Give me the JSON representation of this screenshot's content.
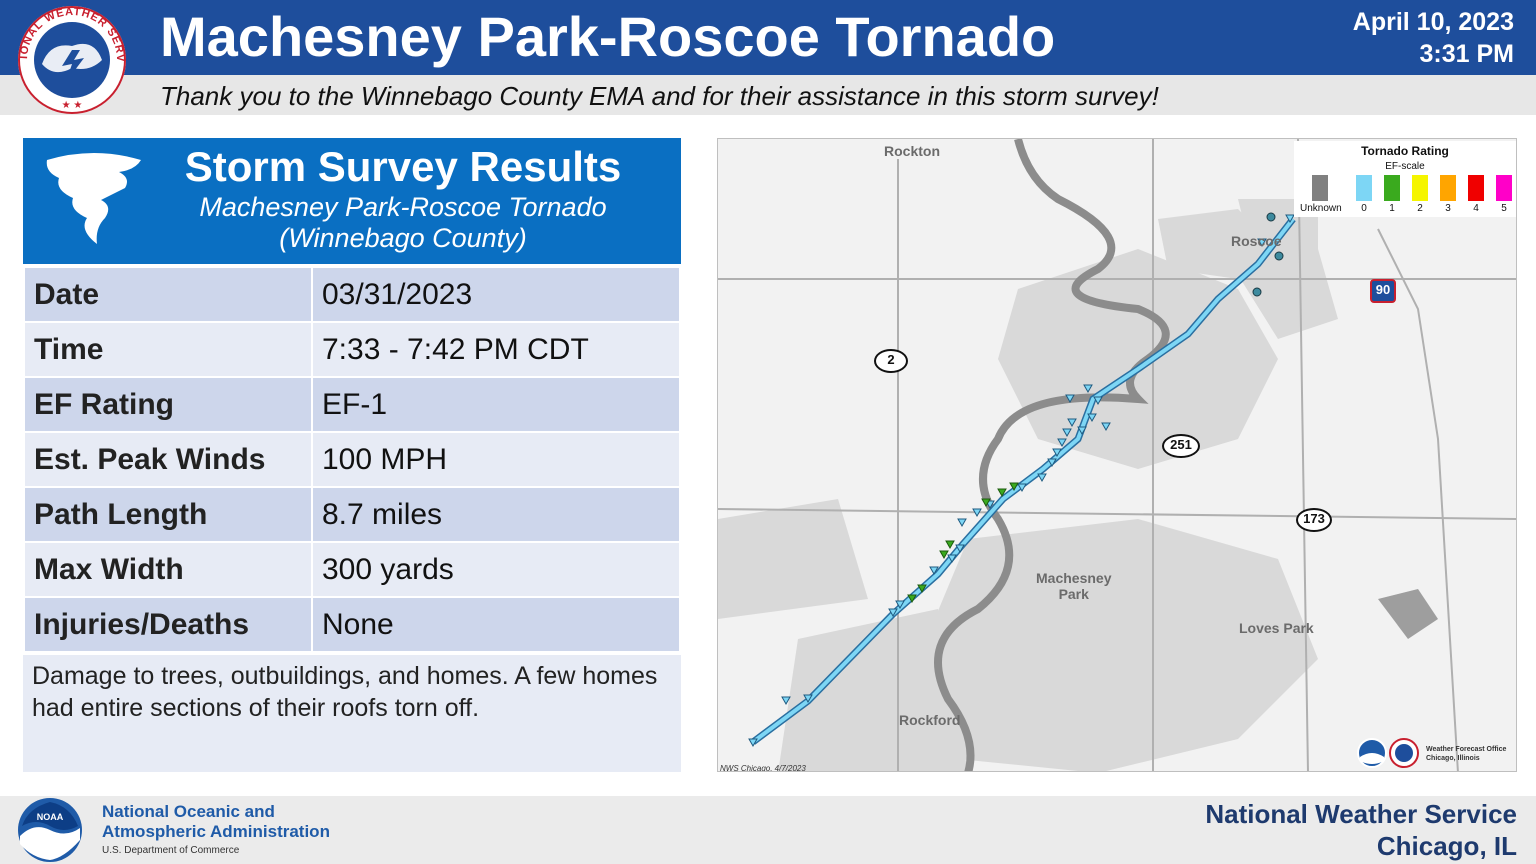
{
  "header": {
    "title": "Machesney Park-Roscoe Tornado",
    "date": "April 10, 2023",
    "time": "3:31 PM",
    "thanks": "Thank you to the Winnebago County EMA and for their assistance in this storm survey!"
  },
  "nws_logo": {
    "text": "NATIONAL WEATHER SERVICE"
  },
  "card": {
    "title": "Storm Survey Results",
    "subtitle_line1": "Machesney Park-Roscoe Tornado",
    "subtitle_line2": "(Winnebago County)"
  },
  "results": [
    {
      "key": "Date",
      "value": "03/31/2023"
    },
    {
      "key": "Time",
      "value": "7:33 - 7:42 PM CDT"
    },
    {
      "key": "EF Rating",
      "value": "EF-1"
    },
    {
      "key": "Est. Peak Winds",
      "value": "100 MPH"
    },
    {
      "key": "Path Length",
      "value": "8.7 miles"
    },
    {
      "key": "Max Width",
      "value": "300 yards"
    },
    {
      "key": "Injuries/Deaths",
      "value": "None"
    }
  ],
  "notes": "Damage to trees, outbuildings, and homes. A few homes had entire sections of their roofs torn off.",
  "map": {
    "places": {
      "rockton": "Rockton",
      "roscoe": "Roscoe",
      "machesney_1": "Machesney",
      "machesney_2": "Park",
      "loves_park": "Loves Park",
      "rockford": "Rockford"
    },
    "routes": {
      "r2": "2",
      "r251": "251",
      "r173": "173",
      "i90": "90"
    },
    "legend": {
      "title": "Tornado Rating",
      "subtitle": "EF-scale",
      "items": [
        {
          "label": "Unknown",
          "color": "#808080"
        },
        {
          "label": "0",
          "color": "#7dd6f5"
        },
        {
          "label": "1",
          "color": "#3aaa1e"
        },
        {
          "label": "2",
          "color": "#f5f500"
        },
        {
          "label": "3",
          "color": "#ffa500"
        },
        {
          "label": "4",
          "color": "#f00000"
        },
        {
          "label": "5",
          "color": "#ff00c8"
        }
      ]
    },
    "credit": "NWS Chicago, 4/7/2023",
    "wfo_line1": "Weather Forecast Office",
    "wfo_line2": "Chicago, Illinois"
  },
  "footer": {
    "noaa_line1": "National Oceanic and",
    "noaa_line2": "Atmospheric Administration",
    "noaa_dept": "U.S. Department of Commerce",
    "nws_line1": "National Weather Service",
    "nws_line2": "Chicago, IL"
  },
  "colors": {
    "header_blue": "#1e4e9c",
    "card_blue": "#0a6fc2",
    "row_dark": "#cdd6eb",
    "row_light": "#e7ebf5",
    "track": "#7dd6f5"
  }
}
